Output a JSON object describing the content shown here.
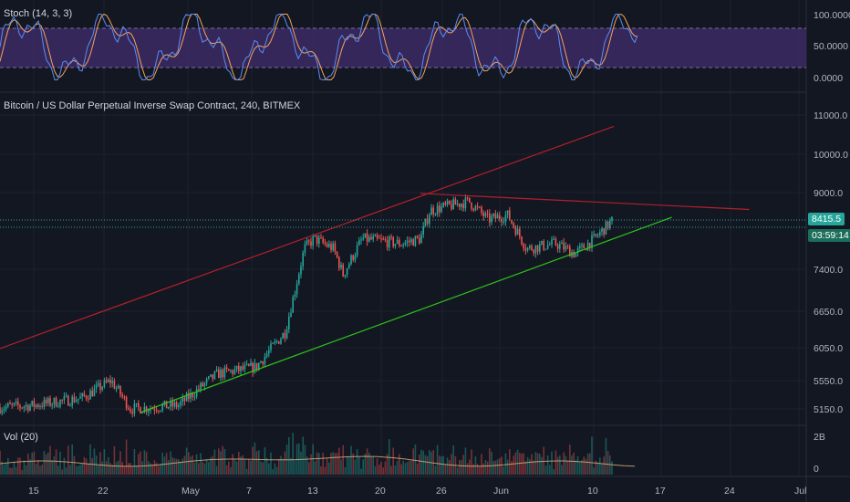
{
  "panes": {
    "stoch": {
      "title": "Stoch (14, 3, 3)",
      "ticks": [
        "100.0000",
        "50.0000",
        "0.0000"
      ]
    },
    "price": {
      "title": "Bitcoin / US Dollar Perpetual Inverse Swap Contract, 240, BITMEX",
      "ticks": [
        "11000.0",
        "10000.0",
        "9000.0",
        "7400.0",
        "6650.0",
        "6050.0",
        "5550.0",
        "5150.0"
      ],
      "last_price": "8415.5",
      "countdown": "03:59:14"
    },
    "volume": {
      "title": "Vol (20)",
      "ticks": [
        "2B",
        "0"
      ]
    }
  },
  "colors": {
    "background": "#131722",
    "up": "#26a69a",
    "down": "#ef5350",
    "channel": "#b2202b",
    "support": "#2ec51a",
    "stoch_band": "#3c2a63"
  },
  "x_axis": {
    "labels": [
      "15",
      "22",
      "May",
      "7",
      "13",
      "20",
      "26",
      "Jun",
      "10",
      "17",
      "24",
      "Jul"
    ]
  },
  "chart_data": {
    "type": "candlestick",
    "symbol": "Bitcoin / US Dollar Perpetual Inverse Swap Contract",
    "interval": "240",
    "exchange": "BITMEX",
    "last_price": 8415.5,
    "close_path": [
      [
        "Apr 9",
        5150
      ],
      [
        "Apr 15",
        5200
      ],
      [
        "Apr 20",
        5300
      ],
      [
        "Apr 23",
        5550
      ],
      [
        "Apr 25",
        5150
      ],
      [
        "Apr 30",
        5200
      ],
      [
        "May 4",
        5650
      ],
      [
        "May 8",
        5750
      ],
      [
        "May 11",
        6300
      ],
      [
        "May 12",
        7000
      ],
      [
        "May 13",
        7800
      ],
      [
        "May 14",
        8000
      ],
      [
        "May 16",
        7800
      ],
      [
        "May 17",
        7300
      ],
      [
        "May 19",
        8000
      ],
      [
        "May 23",
        7900
      ],
      [
        "May 25",
        8000
      ],
      [
        "May 26",
        8600
      ],
      [
        "May 28",
        8700
      ],
      [
        "May 30",
        8800
      ],
      [
        "Jun 1",
        8400
      ],
      [
        "Jun 3",
        8500
      ],
      [
        "Jun 5",
        7800
      ],
      [
        "Jun 8",
        7900
      ],
      [
        "Jun 10",
        7700
      ],
      [
        "Jun 12",
        8000
      ],
      [
        "Jun 14",
        8415.5
      ]
    ],
    "trendlines": [
      {
        "name": "upper-channel",
        "from": [
          "Apr 9",
          5900
        ],
        "to": [
          "Jun 14",
          10700
        ]
      },
      {
        "name": "resistance",
        "from": [
          "May 25",
          8980
        ],
        "to": [
          "Jun 28",
          8620
        ]
      },
      {
        "name": "support",
        "from": [
          "Apr 26",
          5100
        ],
        "to": [
          "Jun 20",
          8450
        ]
      }
    ],
    "stochastic": {
      "params": [
        14,
        3,
        3
      ],
      "ylim": [
        0,
        100
      ]
    },
    "volume": {
      "ma": 20
    }
  }
}
